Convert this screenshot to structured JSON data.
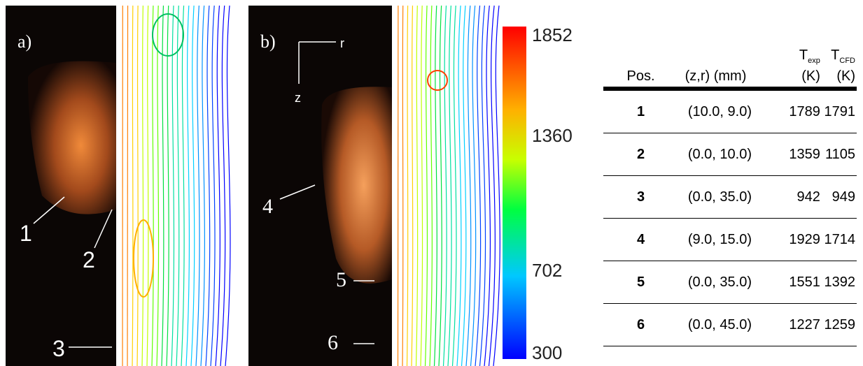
{
  "panels": [
    {
      "label": "a)",
      "points": [
        "1",
        "2",
        "3"
      ]
    },
    {
      "label": "b)",
      "points": [
        "4",
        "5",
        "6"
      ],
      "axes": [
        "r",
        "z"
      ]
    }
  ],
  "colorbar": {
    "ticks": [
      1852,
      1360,
      702,
      300
    ],
    "range": [
      300,
      1852
    ]
  },
  "table": {
    "header": {
      "pos": "Pos.",
      "zr": "(z,r) (mm)",
      "texp": {
        "symbol": "T",
        "sub": "exp",
        "unit": "(K)"
      },
      "tcfd": {
        "symbol": "T",
        "sub": "CFD",
        "unit": "(K)"
      }
    },
    "rows": [
      [
        "1",
        "(10.0, 9.0)",
        "1789",
        "1791"
      ],
      [
        "2",
        "(0.0, 10.0)",
        "1359",
        "1105"
      ],
      [
        "3",
        "(0.0, 35.0)",
        "942",
        "949"
      ],
      [
        "4",
        "(9.0, 15.0)",
        "1929",
        "1714"
      ],
      [
        "5",
        "(0.0, 35.0)",
        "1551",
        "1392"
      ],
      [
        "6",
        "(0.0, 45.0)",
        "1227",
        "1259"
      ]
    ]
  }
}
